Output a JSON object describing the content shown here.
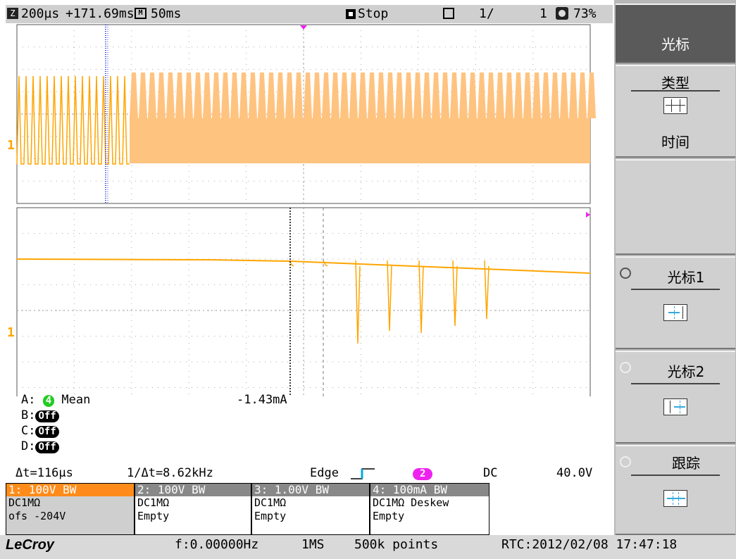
{
  "top_bar": {
    "zoom_icon": "zoom-icon",
    "zoom_label": "Z",
    "timebase_zoom": "200µs",
    "delay": "+171.69ms",
    "main_icon": "main-timebase-icon",
    "main_label": "M",
    "timebase_main": "50ms",
    "run_state": "Stop",
    "acq_count": "1/",
    "acq_total": "1",
    "battery": "73%"
  },
  "channel_marker": "1",
  "measurements": {
    "A": {
      "label": "A:",
      "channel": "4",
      "type": "Mean",
      "value": "-1.43mA"
    },
    "B": {
      "label": "B:",
      "state": "Off"
    },
    "C": {
      "label": "C:",
      "state": "Off"
    },
    "D": {
      "label": "D:",
      "state": "Off"
    }
  },
  "cursor_readout": {
    "delta_t": "Δt=116µs",
    "inv_delta_t": "1/Δt=8.62kHz"
  },
  "trigger": {
    "mode": "Edge",
    "source": "2",
    "coupling": "DC",
    "level": "40.0V"
  },
  "channels": [
    {
      "header": "1:  100V  BW",
      "line1": "DC1MΩ",
      "line2": "ofs      -204V"
    },
    {
      "header": "2:  100V  BW",
      "line1": "DC1MΩ",
      "line2": "Empty"
    },
    {
      "header": "3: 1.00V  BW",
      "line1": "DC1MΩ",
      "line2": "Empty"
    },
    {
      "header": "4: 100mA  BW",
      "line1": "DC1MΩ  Deskew",
      "line2": "Empty"
    }
  ],
  "footer": {
    "brand": "LeCroy",
    "frequency": "f:0.00000Hz",
    "sample_rate": "1MS",
    "record_length": "500k points",
    "rtc": "RTC:2012/02/08 17:47:18"
  },
  "menu": {
    "title": "光标",
    "type_label": "类型",
    "type_value": "时间",
    "cursor1_label": "光标1",
    "cursor2_label": "光标2",
    "track_label": "跟踪"
  },
  "colors": {
    "trace": "#ffa500",
    "cursor1": "#3344dd",
    "meas_channel": "#22cc22",
    "trigger_channel": "#ee22ee",
    "active_channel": "#ff8c1a"
  }
}
